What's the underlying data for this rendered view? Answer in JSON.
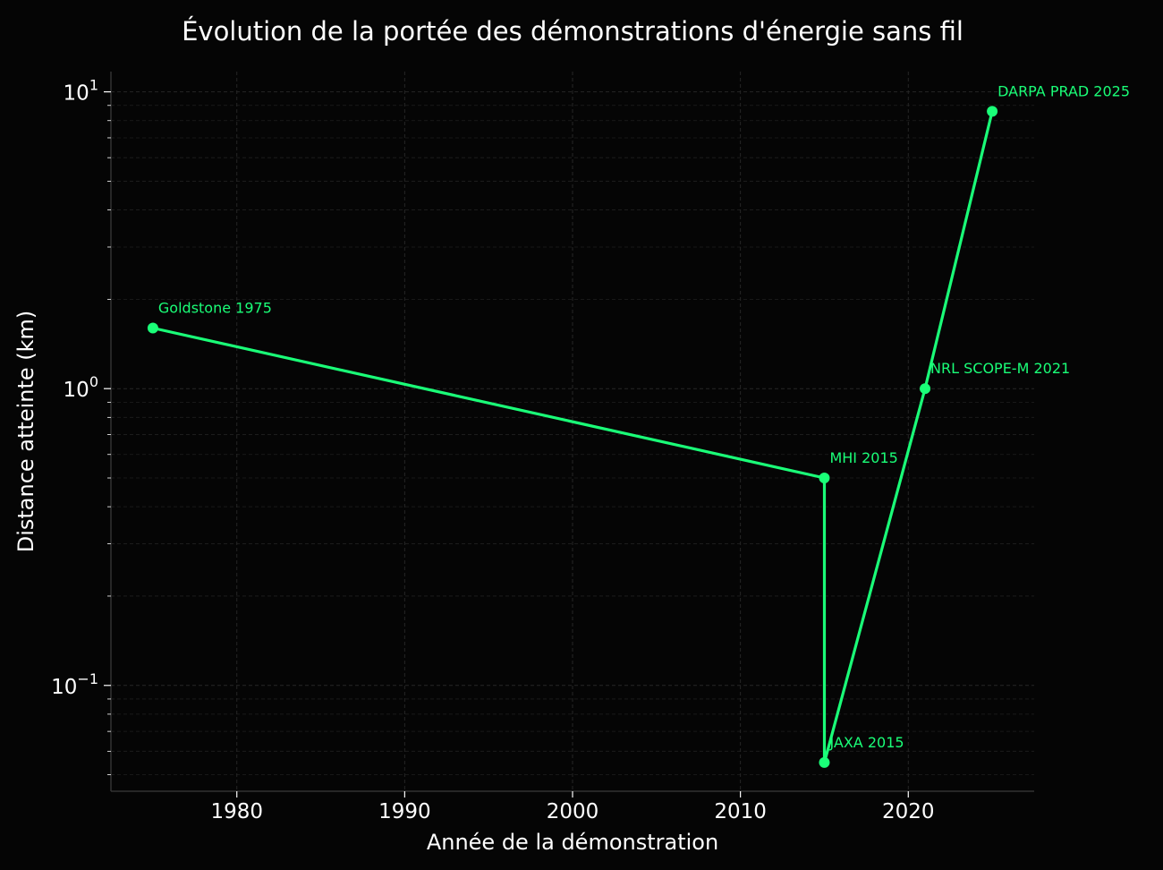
{
  "chart_data": {
    "type": "line",
    "title": "Évolution de la portée des démonstrations d'énergie sans fil",
    "xlabel": "Année de la démonstration",
    "ylabel": "Distance atteinte (km)",
    "x_scale": "linear",
    "y_scale": "log",
    "xlim": [
      1972.5,
      2027.5
    ],
    "ylim": [
      0.044,
      11.7
    ],
    "x_ticks": [
      1980,
      1990,
      2000,
      2010,
      2020
    ],
    "y_ticks": [
      {
        "value": 10,
        "label": "10",
        "exp": "1"
      },
      {
        "value": 1,
        "label": "10",
        "exp": "0"
      },
      {
        "value": 0.1,
        "label": "10",
        "exp": "−1"
      }
    ],
    "grid": true,
    "legend": "none",
    "series": [
      {
        "color": "#1aff78",
        "points": [
          {
            "x": 1975,
            "y": 1.6,
            "label": "Goldstone 1975"
          },
          {
            "x": 2015,
            "y": 0.5,
            "label": "MHI 2015"
          },
          {
            "x": 2015,
            "y": 0.055,
            "label": "JAXA 2015"
          },
          {
            "x": 2021,
            "y": 1.0,
            "label": "NRL SCOPE-M 2021"
          },
          {
            "x": 2025,
            "y": 8.6,
            "label": "DARPA PRAD 2025"
          }
        ]
      }
    ],
    "colors": {
      "background": "#050505",
      "text": "#ffffff",
      "axis": "#333333",
      "grid": "#262626"
    }
  }
}
